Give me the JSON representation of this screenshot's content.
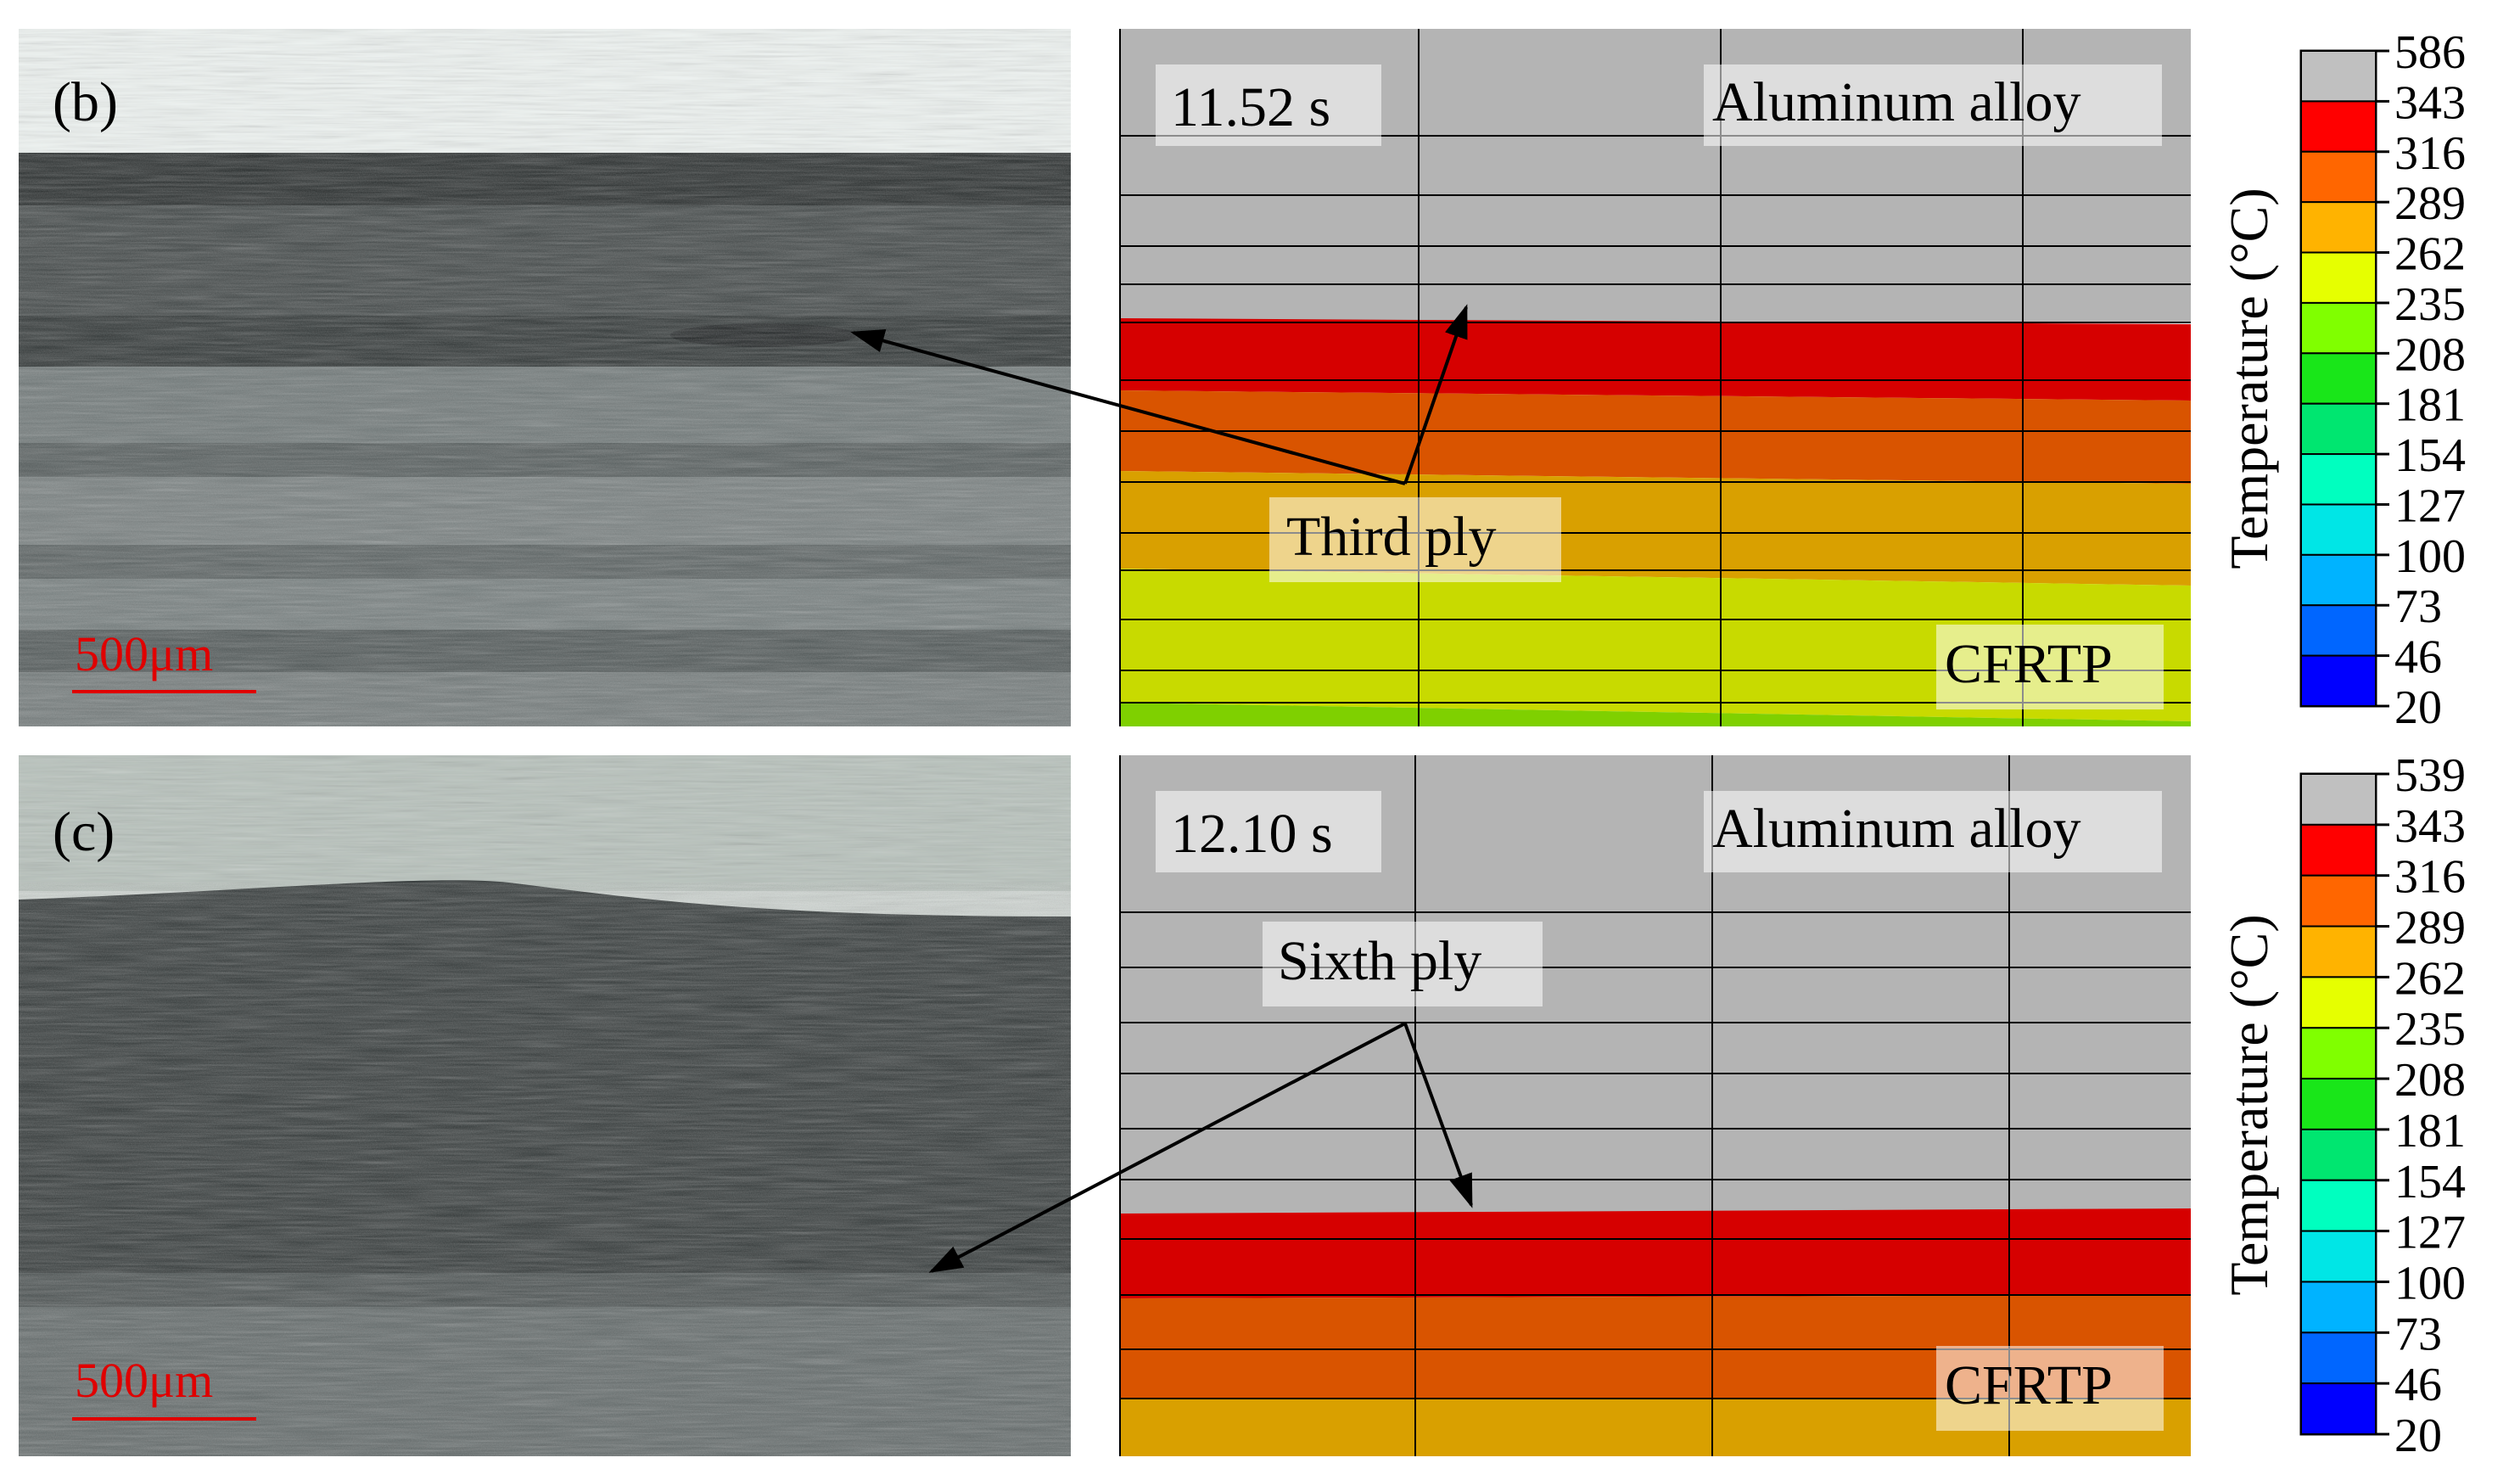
{
  "panels": [
    {
      "id": "b",
      "label": "(b)",
      "time": "11.52 s",
      "top_material": "Aluminum alloy",
      "bottom_material": "CFRTP",
      "ply_label": "Third ply",
      "scale_bar": "500μm",
      "legend": {
        "title": "Temperature (°C)",
        "ticks": [
          "586",
          "343",
          "316",
          "289",
          "262",
          "235",
          "208",
          "181",
          "154",
          "127",
          "100",
          "73",
          "46",
          "20"
        ],
        "colors": [
          "#c0c0c0",
          "#ff0000",
          "#ff6600",
          "#ffb300",
          "#e6ff00",
          "#80ff00",
          "#19e619",
          "#00e670",
          "#00ffbf",
          "#00e6e6",
          "#00b3ff",
          "#0066ff",
          "#0000ff"
        ]
      },
      "sim_bands": [
        "#b4b4b4",
        "#d60000",
        "#d95400",
        "#d9a000",
        "#c8da00",
        "#7fd000"
      ]
    },
    {
      "id": "c",
      "label": "(c)",
      "time": "12.10 s",
      "top_material": "Aluminum alloy",
      "bottom_material": "CFRTP",
      "ply_label": "Sixth ply",
      "scale_bar": "500μm",
      "legend": {
        "title": "Temperature (°C)",
        "ticks": [
          "539",
          "343",
          "316",
          "289",
          "262",
          "235",
          "208",
          "181",
          "154",
          "127",
          "100",
          "73",
          "46",
          "20"
        ],
        "colors": [
          "#c0c0c0",
          "#ff0000",
          "#ff6600",
          "#ffb300",
          "#e6ff00",
          "#80ff00",
          "#19e619",
          "#00e670",
          "#00ffbf",
          "#00e6e6",
          "#00b3ff",
          "#0066ff",
          "#0000ff"
        ]
      },
      "sim_bands": [
        "#b4b4b4",
        "#d60000",
        "#d95400",
        "#d9a000"
      ]
    }
  ]
}
